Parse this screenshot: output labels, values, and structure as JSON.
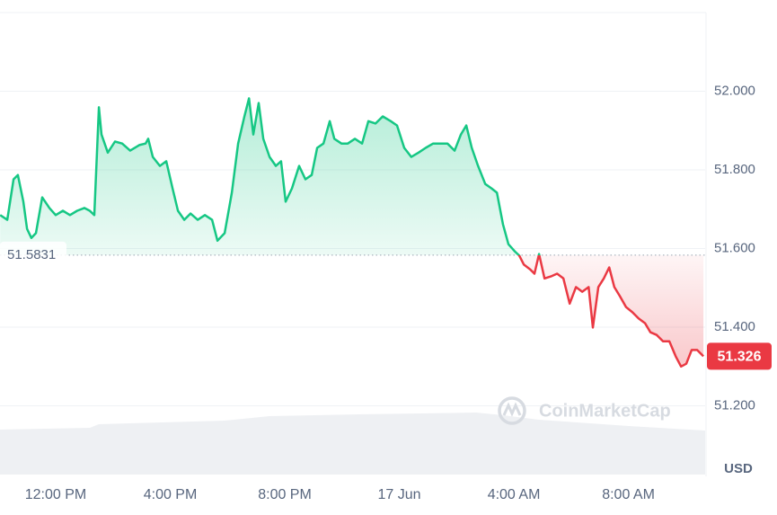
{
  "chart_data": {
    "type": "line",
    "watermark": "CoinMarketCap",
    "currency": "USD",
    "baseline": 51.5831,
    "up_color": "#16c784",
    "down_color": "#ea3943",
    "xlim": [
      10.055,
      34.68
    ],
    "xticks": [
      {
        "value": 12,
        "label": "12:00 PM"
      },
      {
        "value": 16,
        "label": "4:00 PM"
      },
      {
        "value": 20,
        "label": "8:00 PM"
      },
      {
        "value": 24,
        "label": "17 Jun"
      },
      {
        "value": 28,
        "label": "4:00 AM"
      },
      {
        "value": 32,
        "label": "8:00 AM"
      }
    ],
    "ylim": [
      51.0,
      52.2
    ],
    "yticks": [
      {
        "value": 51.2,
        "label": "51.200"
      },
      {
        "value": 51.4,
        "label": "51.400"
      },
      {
        "value": 51.6,
        "label": "51.600"
      },
      {
        "value": 51.8,
        "label": "51.800"
      },
      {
        "value": 52.0,
        "label": "52.000"
      }
    ],
    "grid": true,
    "x": [
      10.06,
      10.31,
      10.53,
      10.68,
      10.87,
      11.0,
      11.15,
      11.31,
      11.53,
      11.78,
      12.0,
      12.25,
      12.5,
      12.75,
      13.0,
      13.19,
      13.35,
      13.51,
      13.6,
      13.82,
      14.07,
      14.32,
      14.6,
      14.92,
      15.14,
      15.23,
      15.39,
      15.64,
      15.86,
      16.08,
      16.27,
      16.49,
      16.71,
      16.96,
      17.21,
      17.46,
      17.65,
      17.9,
      18.15,
      18.37,
      18.59,
      18.75,
      18.9,
      19.09,
      19.25,
      19.47,
      19.69,
      19.87,
      20.03,
      20.25,
      20.5,
      20.72,
      20.94,
      21.13,
      21.35,
      21.57,
      21.73,
      21.98,
      22.2,
      22.45,
      22.7,
      22.92,
      23.17,
      23.42,
      23.7,
      23.92,
      24.17,
      24.42,
      24.67,
      24.92,
      25.18,
      25.43,
      25.68,
      25.93,
      26.15,
      26.34,
      26.53,
      26.75,
      27.0,
      27.22,
      27.41,
      27.62,
      27.81,
      28.03,
      28.19,
      28.35,
      28.57,
      28.72,
      28.88,
      29.07,
      29.29,
      29.51,
      29.73,
      29.95,
      30.17,
      30.39,
      30.61,
      30.76,
      30.95,
      31.14,
      31.33,
      31.51,
      31.7,
      31.92,
      32.14,
      32.36,
      32.58,
      32.77,
      32.99,
      33.21,
      33.43,
      33.65,
      33.84,
      34.02,
      34.21,
      34.4,
      34.62
    ],
    "series": [
      {
        "values": [
          51.685,
          51.673,
          51.776,
          51.787,
          51.719,
          51.65,
          51.627,
          51.639,
          51.73,
          51.703,
          51.685,
          51.696,
          51.685,
          51.696,
          51.703,
          51.696,
          51.685,
          51.959,
          51.89,
          51.844,
          51.872,
          51.867,
          51.849,
          51.863,
          51.867,
          51.879,
          51.833,
          51.81,
          51.822,
          51.753,
          51.696,
          51.673,
          51.689,
          51.673,
          51.685,
          51.673,
          51.62,
          51.639,
          51.742,
          51.867,
          51.936,
          51.982,
          51.89,
          51.97,
          51.879,
          51.833,
          51.81,
          51.822,
          51.719,
          51.753,
          51.81,
          51.776,
          51.787,
          51.856,
          51.867,
          51.924,
          51.879,
          51.867,
          51.867,
          51.879,
          51.867,
          51.924,
          51.918,
          51.936,
          51.924,
          51.913,
          51.856,
          51.833,
          51.844,
          51.856,
          51.867,
          51.867,
          51.867,
          51.849,
          51.89,
          51.913,
          51.856,
          51.81,
          51.764,
          51.753,
          51.742,
          51.662,
          51.611,
          51.593,
          51.582,
          51.559,
          51.547,
          51.536,
          51.586,
          51.524,
          51.529,
          51.536,
          51.524,
          51.46,
          51.502,
          51.49,
          51.502,
          51.399,
          51.502,
          51.524,
          51.552,
          51.502,
          51.479,
          51.451,
          51.438,
          51.422,
          51.41,
          51.387,
          51.38,
          51.364,
          51.364,
          51.326,
          51.3,
          51.307,
          51.342,
          51.342,
          51.326
        ]
      }
    ]
  }
}
